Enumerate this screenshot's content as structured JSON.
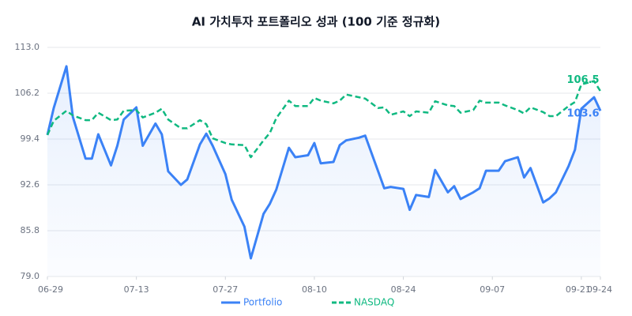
{
  "chart_data": {
    "type": "line",
    "title": "AI 가치투자 포트폴리오 성과 (100 기준 정규화)",
    "x": [
      "06-29",
      "06-30",
      "07-02",
      "07-03",
      "07-05",
      "07-06",
      "07-07",
      "07-09",
      "07-10",
      "07-11",
      "07-13",
      "07-14",
      "07-16",
      "07-17",
      "07-18",
      "07-20",
      "07-21",
      "07-23",
      "07-24",
      "07-25",
      "07-27",
      "07-28",
      "07-30",
      "07-31",
      "08-02",
      "08-03",
      "08-04",
      "08-06",
      "08-07",
      "08-09",
      "08-10",
      "08-11",
      "08-13",
      "08-14",
      "08-15",
      "08-17",
      "08-18",
      "08-20",
      "08-21",
      "08-22",
      "08-24",
      "08-25",
      "08-26",
      "08-28",
      "08-29",
      "08-31",
      "09-01",
      "09-02",
      "09-04",
      "09-05",
      "09-06",
      "09-08",
      "09-09",
      "09-11",
      "09-12",
      "09-13",
      "09-15",
      "09-16",
      "09-17",
      "09-19",
      "09-20",
      "09-21",
      "09-23",
      "09-24"
    ],
    "series": [
      {
        "name": "Portfolio",
        "color": "#3b82f6",
        "dashed": false,
        "fill": true,
        "values": [
          100.0,
          104.0,
          110.2,
          102.7,
          96.5,
          96.5,
          100.1,
          95.5,
          98.4,
          102.3,
          104.1,
          98.4,
          101.7,
          100.1,
          94.6,
          92.6,
          93.4,
          98.6,
          100.2,
          98.4,
          94.2,
          90.4,
          86.4,
          81.7,
          88.3,
          89.8,
          91.9,
          98.1,
          96.7,
          97.0,
          98.8,
          95.8,
          96.0,
          98.5,
          99.2,
          99.6,
          99.9,
          94.7,
          92.1,
          92.3,
          92.0,
          88.9,
          91.1,
          90.8,
          94.8,
          91.5,
          92.4,
          90.5,
          91.5,
          92.1,
          94.7,
          94.7,
          96.1,
          96.7,
          93.7,
          95.1,
          90.0,
          90.6,
          91.5,
          95.4,
          97.8,
          103.9,
          105.6,
          103.6
        ]
      },
      {
        "name": "NASDAQ",
        "color": "#10b981",
        "dashed": true,
        "fill": false,
        "values": [
          100.0,
          102.1,
          103.6,
          102.9,
          102.2,
          102.2,
          103.3,
          102.2,
          102.3,
          103.6,
          103.7,
          102.6,
          103.3,
          103.9,
          102.3,
          101.0,
          101.0,
          102.2,
          101.6,
          99.5,
          98.8,
          98.6,
          98.5,
          96.7,
          99.2,
          100.3,
          102.5,
          105.1,
          104.3,
          104.3,
          105.5,
          105.1,
          104.7,
          105.1,
          106.0,
          105.6,
          105.4,
          104.0,
          104.1,
          103.0,
          103.5,
          102.8,
          103.5,
          103.3,
          105.0,
          104.4,
          104.3,
          103.3,
          103.7,
          105.1,
          104.8,
          104.8,
          104.4,
          103.7,
          103.2,
          104.1,
          103.4,
          102.8,
          102.8,
          104.3,
          104.9,
          107.5,
          108.0,
          106.5
        ]
      }
    ],
    "xlim": [
      "06-29",
      "09-24"
    ],
    "xticks": [
      "06-29",
      "07-13",
      "07-27",
      "08-10",
      "08-24",
      "09-07",
      "09-21",
      "09-24"
    ],
    "ylim": [
      79,
      113
    ],
    "yticks": [
      {
        "value": 79,
        "label": "79.0"
      },
      85.8,
      92.6,
      99.4,
      106.2,
      {
        "value": 113,
        "label": "113.0"
      }
    ],
    "grid": true,
    "legend": "bottom"
  }
}
